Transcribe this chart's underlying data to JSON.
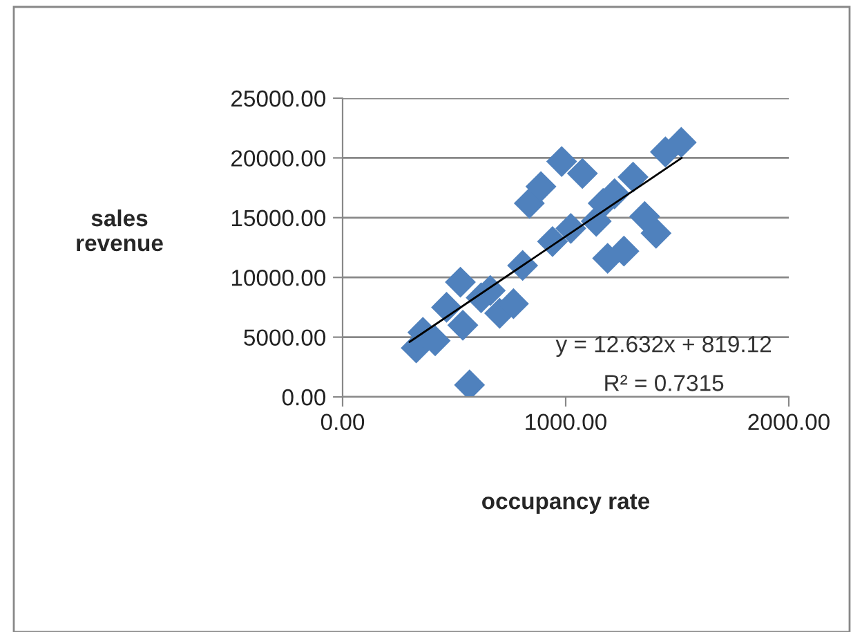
{
  "chart_data": {
    "type": "scatter",
    "xlabel": "occupancy rate",
    "ylabel": "sales\nrevenue",
    "x": [
      330,
      360,
      415,
      466,
      528,
      539,
      569,
      621,
      662,
      704,
      766,
      807,
      837,
      889,
      941,
      982,
      1023,
      1075,
      1137,
      1188,
      1168,
      1219,
      1261,
      1302,
      1354,
      1405,
      1447,
      1518
    ],
    "series": [
      {
        "color": "#4f81bd",
        "marker": "diamond",
        "values": [
          4100,
          5400,
          4700,
          7500,
          9600,
          6000,
          1000,
          8300,
          8900,
          7000,
          7800,
          11000,
          16200,
          17600,
          13000,
          19700,
          14100,
          18700,
          14700,
          11600,
          16200,
          17000,
          12200,
          18400,
          15100,
          13700,
          20500,
          21300
        ]
      },
      {
        "type": "line",
        "color": "#000000",
        "marker": "none",
        "x": [
          300,
          1520
        ],
        "values": [
          4600,
          20000
        ]
      }
    ],
    "annotations": [
      "y = 12.632x + 819.12",
      "R² = 0.7315"
    ],
    "xlim": [
      0,
      2000
    ],
    "xticks": [
      {
        "value": 0,
        "label": "0.00"
      },
      {
        "value": 1000,
        "label": "1000.00"
      },
      {
        "value": 2000,
        "label": "2000.00"
      }
    ],
    "ylim": [
      0,
      25000
    ],
    "yticks": [
      {
        "value": 0,
        "label": "0.00"
      },
      {
        "value": 5000,
        "label": "5000.00"
      },
      {
        "value": 10000,
        "label": "10000.00"
      },
      {
        "value": 15000,
        "label": "15000.00"
      },
      {
        "value": 20000,
        "label": "20000.00"
      },
      {
        "value": 25000,
        "label": "25000.00"
      }
    ],
    "grid": "y",
    "legend": false
  }
}
